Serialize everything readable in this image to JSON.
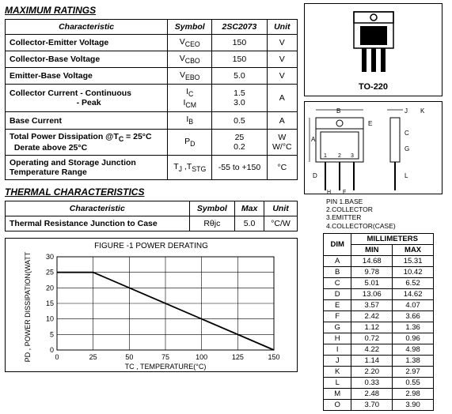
{
  "titles": {
    "max_ratings": "MAXIMUM RATINGS",
    "thermal": "THERMAL CHARACTERISTICS",
    "chart": "FIGURE -1 POWER DERATING"
  },
  "ratings_headers": [
    "Characteristic",
    "Symbol",
    "2SC2073",
    "Unit"
  ],
  "ratings": [
    {
      "label": "Collector-Emitter Voltage",
      "sym": "V<sub>CEO</sub>",
      "val": "150",
      "unit": "V"
    },
    {
      "label": "Collector-Base Voltage",
      "sym": "V<sub>CBO</sub>",
      "val": "150",
      "unit": "V"
    },
    {
      "label": "Emitter-Base Voltage",
      "sym": "V<sub>EBO</sub>",
      "val": "5.0",
      "unit": "V"
    },
    {
      "label": "Collector Current - Continuous<br>&nbsp;&nbsp;&nbsp;&nbsp;&nbsp;&nbsp;&nbsp;&nbsp;&nbsp;&nbsp;&nbsp;&nbsp;&nbsp;&nbsp;&nbsp;&nbsp;&nbsp;&nbsp;&nbsp;&nbsp;&nbsp;&nbsp;&nbsp;&nbsp;&nbsp;&nbsp;&nbsp;&nbsp;&nbsp;- Peak",
      "sym": "I<sub>C</sub><br>I<sub>CM</sub>",
      "val": "1.5<br>3.0",
      "unit": "A"
    },
    {
      "label": "Base Current",
      "sym": "I<sub>B</sub>",
      "val": "0.5",
      "unit": "A"
    },
    {
      "label": "Total Power Dissipation @T<sub>C</sub> = 25°C<br>&nbsp;&nbsp;Derate above 25°C",
      "sym": "P<sub>D</sub>",
      "val": "25<br>0.2",
      "unit": "W<br>W/°C"
    },
    {
      "label": "Operating and Storage Junction<br>Temperature Range",
      "sym": "T<sub>J</sub> ,T<sub>STG</sub>",
      "val": "-55 to +150",
      "unit": "°C"
    }
  ],
  "thermal_headers": [
    "Characteristic",
    "Symbol",
    "Max",
    "Unit"
  ],
  "thermal_rows": [
    {
      "label": "Thermal Resistance Junction to Case",
      "sym": "Rθjc",
      "val": "5.0",
      "unit": "°C/W"
    }
  ],
  "chart": {
    "ylabel": "PD , POWER DISSIPATION(WATTS)",
    "xlabel": "TC , TEMPERATURE(°C)",
    "xticks": [
      0,
      25,
      50,
      75,
      100,
      125,
      150
    ],
    "yticks": [
      0,
      5,
      10,
      15,
      20,
      25,
      30
    ],
    "line": [
      [
        0,
        25
      ],
      [
        25,
        25
      ],
      [
        150,
        0
      ]
    ],
    "grid_color": "#000000",
    "line_color": "#000000",
    "bg": "#ffffff"
  },
  "package_label": "TO-220",
  "pins": [
    "PIN 1.BASE",
    "2.COLLECTOR",
    "3.EMITTER",
    "4.COLLECTOR(CASE)"
  ],
  "dims_header": {
    "top": "MILLIMETERS",
    "dim": "DIM",
    "min": "MIN",
    "max": "MAX"
  },
  "dims": [
    {
      "k": "A",
      "min": "14.68",
      "max": "15.31"
    },
    {
      "k": "B",
      "min": "9.78",
      "max": "10.42"
    },
    {
      "k": "C",
      "min": "5.01",
      "max": "6.52"
    },
    {
      "k": "D",
      "min": "13.06",
      "max": "14.62"
    },
    {
      "k": "E",
      "min": "3.57",
      "max": "4.07"
    },
    {
      "k": "F",
      "min": "2.42",
      "max": "3.66"
    },
    {
      "k": "G",
      "min": "1.12",
      "max": "1.36"
    },
    {
      "k": "H",
      "min": "0.72",
      "max": "0.96"
    },
    {
      "k": "I",
      "min": "4.22",
      "max": "4.98"
    },
    {
      "k": "J",
      "min": "1.14",
      "max": "1.38"
    },
    {
      "k": "K",
      "min": "2.20",
      "max": "2.97"
    },
    {
      "k": "L",
      "min": "0.33",
      "max": "0.55"
    },
    {
      "k": "M",
      "min": "2.48",
      "max": "2.98"
    },
    {
      "k": "O",
      "min": "3.70",
      "max": "3.90"
    }
  ]
}
